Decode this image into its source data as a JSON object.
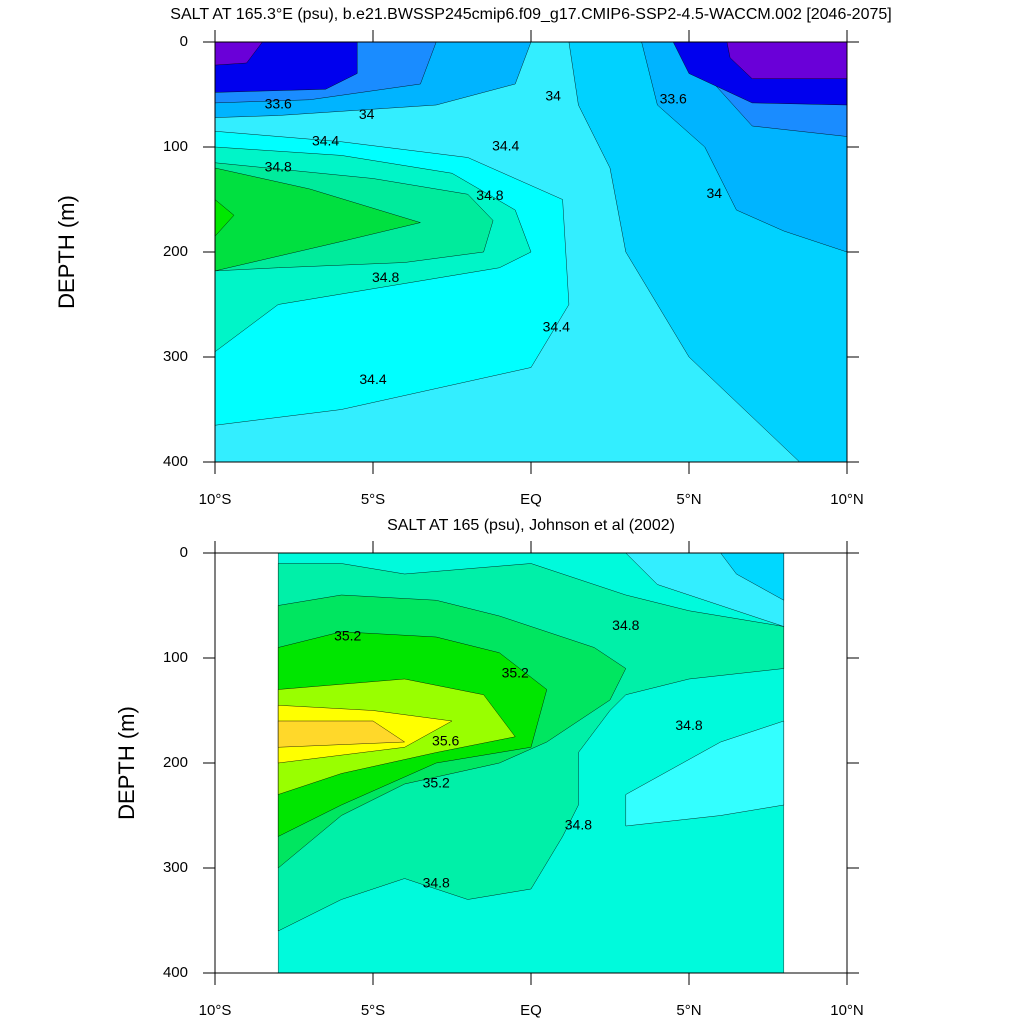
{
  "chart_data": [
    {
      "type": "contour",
      "title": "SALT AT 165.3°E (psu), b.e21.BWSSP245cmip6.f09_g17.CMIP6-SSP2-4.5-WACCM.002 [2046-2075]",
      "y_label": "DEPTH (m)",
      "xlim": [
        -10,
        10
      ],
      "xticks": [
        {
          "value": -10,
          "label": "10°S"
        },
        {
          "value": -5,
          "label": "5°S"
        },
        {
          "value": 0,
          "label": "EQ"
        },
        {
          "value": 5,
          "label": "5°N"
        },
        {
          "value": 10,
          "label": "10°N"
        }
      ],
      "ylim": [
        400,
        0
      ],
      "yticks": [
        0,
        100,
        200,
        300,
        400
      ],
      "colors": [
        "#33eeff",
        "#00d2ff",
        "#00b4ff",
        "#1a8cff",
        "#0000ee",
        "#6a00d8",
        "#00ffff",
        "#00f5c8",
        "#00eb9c",
        "#00e040",
        "#00e800"
      ],
      "contour_labels": [
        33.6,
        34,
        34.4,
        34.8,
        34.8,
        34.8,
        34.4,
        34.4,
        34.4,
        34,
        33.6,
        34
      ]
    },
    {
      "type": "contour",
      "title": "SALT AT 165 (psu), Johnson et al (2002)",
      "y_label": "DEPTH (m)",
      "xlim": [
        -10,
        10
      ],
      "xticks": [
        {
          "value": -10,
          "label": "10°S"
        },
        {
          "value": -5,
          "label": "5°S"
        },
        {
          "value": 0,
          "label": "EQ"
        },
        {
          "value": 5,
          "label": "5°N"
        },
        {
          "value": 10,
          "label": "10°N"
        }
      ],
      "ylim": [
        400,
        0
      ],
      "yticks": [
        0,
        100,
        200,
        300,
        400
      ],
      "colors": [
        "#00fadc",
        "#00f0a8",
        "#00e660",
        "#00e600",
        "#99ff00",
        "#ffff00",
        "#ffd82a",
        "#33eeff",
        "#00d8ff",
        "#33ffff"
      ],
      "contour_labels": [
        35.2,
        35.2,
        35.6,
        35.2,
        34.8,
        34.8,
        34.8,
        34.8
      ]
    }
  ]
}
